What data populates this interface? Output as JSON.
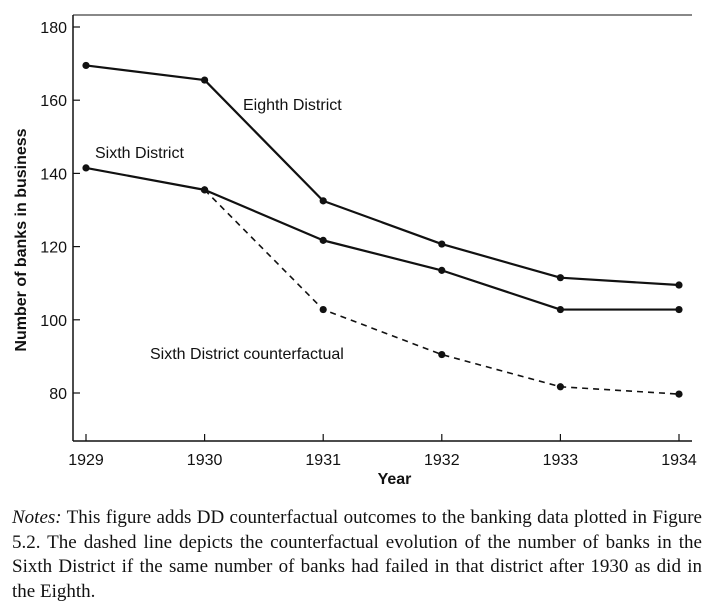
{
  "chart_data": {
    "type": "line",
    "title": "",
    "xlabel": "Year",
    "ylabel": "Number of banks in business",
    "x": [
      1929,
      1930,
      1931,
      1932,
      1933,
      1934
    ],
    "x_tick_labels": [
      "1929",
      "1930",
      "1931",
      "1932",
      "1933",
      "1934"
    ],
    "ylim": [
      70,
      185
    ],
    "y_ticks": [
      80,
      100,
      120,
      140,
      160,
      180
    ],
    "y_tick_labels": [
      "80",
      "100",
      "120",
      "140",
      "160",
      "180"
    ],
    "grid": false,
    "legend": "none (series labelled inline)",
    "series": [
      {
        "name": "Eighth District",
        "style": "solid",
        "x": [
          1929,
          1930,
          1931,
          1932,
          1933,
          1934
        ],
        "values": [
          169.5,
          165.5,
          132.5,
          120.7,
          111.5,
          109.5
        ]
      },
      {
        "name": "Sixth District",
        "style": "solid",
        "x": [
          1929,
          1930,
          1931,
          1932,
          1933,
          1934
        ],
        "values": [
          141.5,
          135.5,
          121.7,
          113.5,
          102.8,
          102.8
        ]
      },
      {
        "name": "Sixth District counterfactual",
        "style": "dashed",
        "x": [
          1930,
          1931,
          1932,
          1933,
          1934
        ],
        "values": [
          135.5,
          102.8,
          90.5,
          81.7,
          79.7
        ]
      }
    ]
  },
  "notes": {
    "label": "Notes:",
    "text": " This figure adds DD counterfactual outcomes to the banking data plotted in Figure 5.2. The dashed line depicts the counterfactual evolution of the number of banks in the Sixth District if the same number of banks had failed in that district after 1930 as did in the Eighth."
  },
  "colors": {
    "line": "#111111",
    "background": "#ffffff"
  }
}
